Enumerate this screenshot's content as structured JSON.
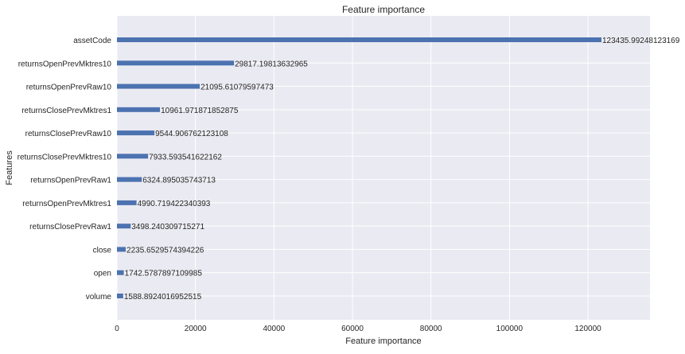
{
  "chart_data": {
    "type": "bar",
    "orientation": "horizontal",
    "title": "Feature importance",
    "xlabel": "Feature importance",
    "ylabel": "Features",
    "xlim": [
      0,
      135800
    ],
    "xticks": [
      0,
      20000,
      40000,
      60000,
      80000,
      100000,
      120000
    ],
    "grid": true,
    "bar_color": "#4c72b0",
    "background_color": "#eaeaf2",
    "categories": [
      "assetCode",
      "returnsOpenPrevMktres10",
      "returnsOpenPrevRaw10",
      "returnsClosePrevMktres1",
      "returnsClosePrevRaw10",
      "returnsClosePrevMktres10",
      "returnsOpenPrevRaw1",
      "returnsOpenPrevMktres1",
      "returnsClosePrevRaw1",
      "close",
      "open",
      "volume"
    ],
    "values": [
      123435.99248123169,
      29817.19813632965,
      21095.61079597473,
      10961.971871852875,
      9544.906762123108,
      7933.593541622162,
      6324.895035743713,
      4990.719422340393,
      3498.240309715271,
      2235.6529574394226,
      1742.5787897109985,
      1588.8924016952515
    ],
    "value_labels": [
      "123435.99248123169",
      "29817.19813632965",
      "21095.61079597473",
      "10961.971871852875",
      "9544.906762123108",
      "7933.593541622162",
      "6324.895035743713",
      "4990.719422340393",
      "3498.240309715271",
      "2235.6529574394226",
      "1742.5787897109985",
      "1588.8924016952515"
    ]
  }
}
